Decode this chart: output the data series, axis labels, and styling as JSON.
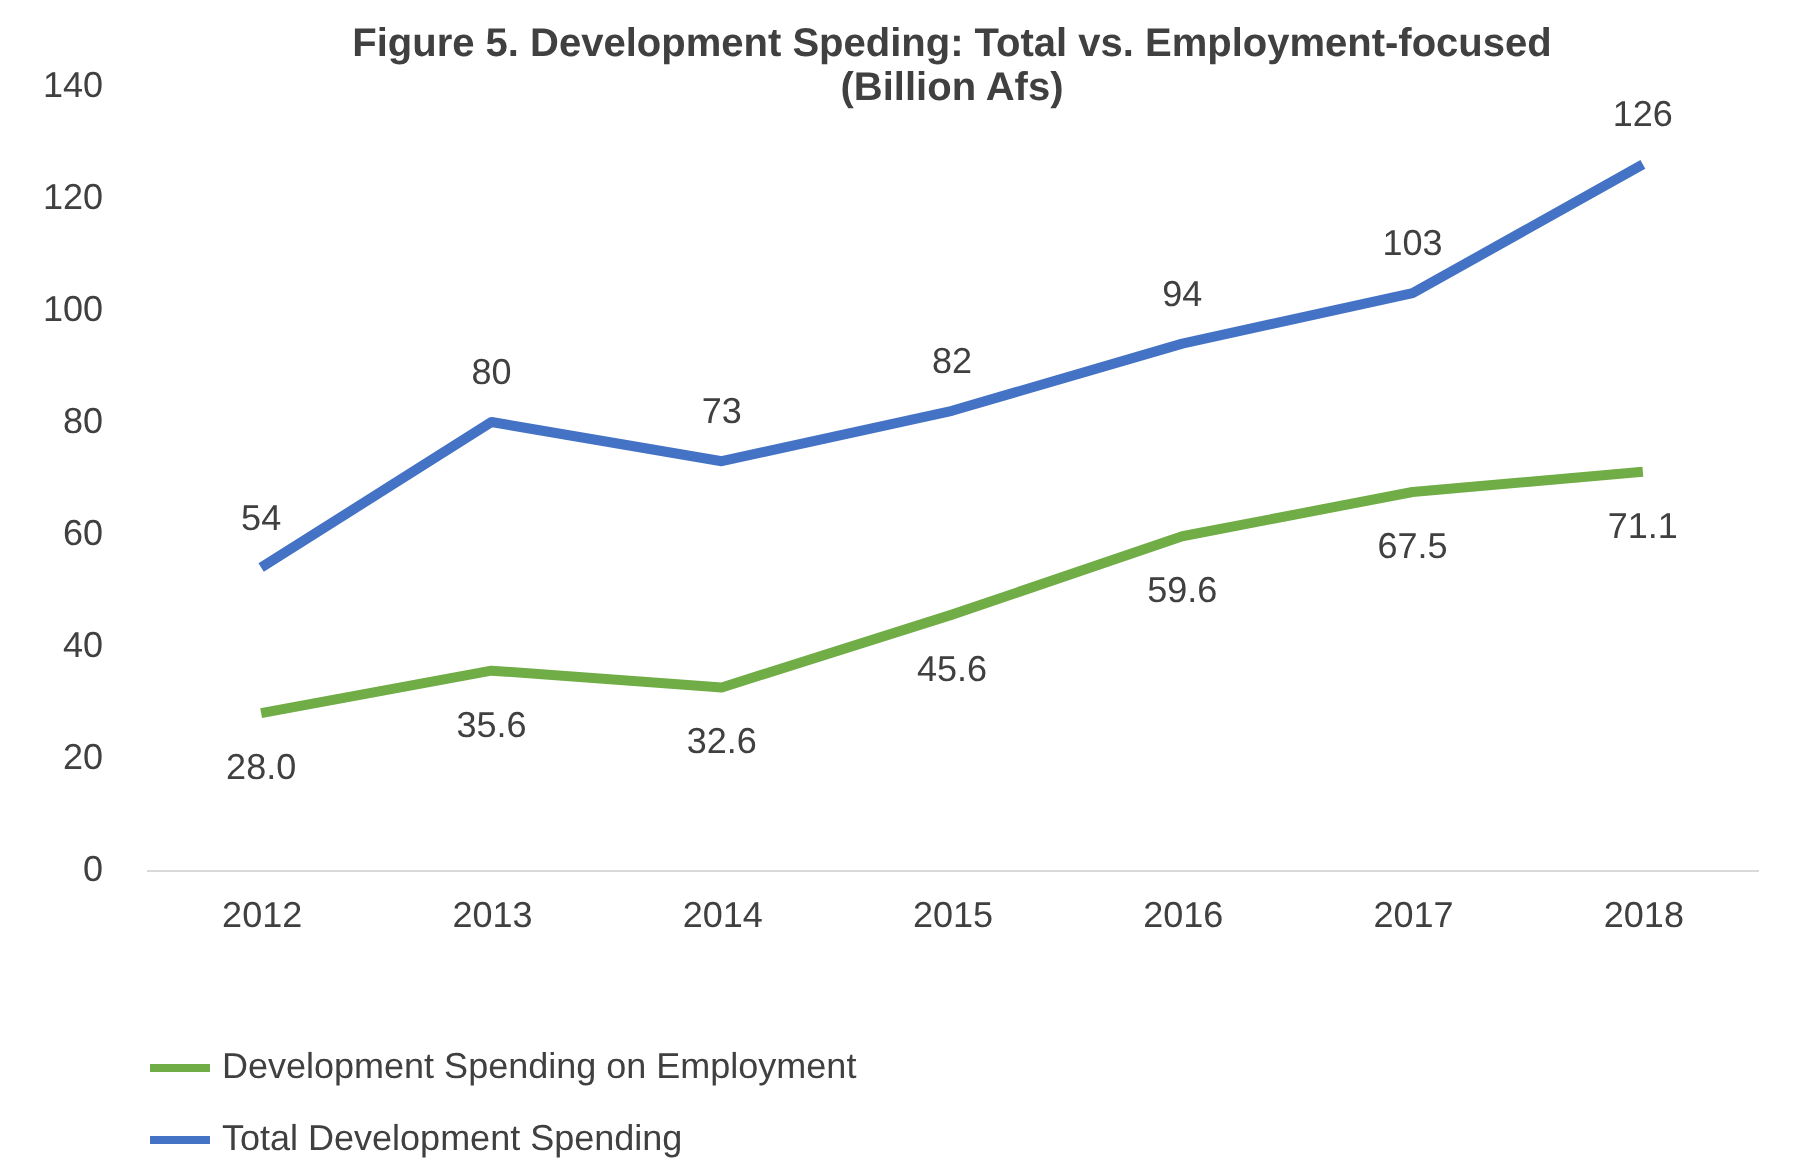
{
  "chart_data": {
    "type": "line",
    "title": "Figure 5. Development Speding: Total vs. Employment-focused (Billion Afs)",
    "categories": [
      "2012",
      "2013",
      "2014",
      "2015",
      "2016",
      "2017",
      "2018"
    ],
    "series": [
      {
        "name": "Development Spending on Employment",
        "color": "#70ad47",
        "values": [
          28.0,
          35.6,
          32.6,
          45.6,
          59.6,
          67.5,
          71.1
        ],
        "value_labels": [
          "28.0",
          "35.6",
          "32.6",
          "45.6",
          "59.6",
          "67.5",
          "71.1"
        ]
      },
      {
        "name": "Total Development Spending",
        "color": "#4472c4",
        "values": [
          54,
          80,
          73,
          82,
          94,
          103,
          126
        ],
        "value_labels": [
          "54",
          "80",
          "73",
          "82",
          "94",
          "103",
          "126"
        ]
      }
    ],
    "ylim": [
      0,
      140
    ],
    "yticks": [
      0,
      20,
      40,
      60,
      80,
      100,
      120,
      140
    ],
    "grid": false,
    "legend": "bottom",
    "marker": "none",
    "line_style": "solid"
  }
}
